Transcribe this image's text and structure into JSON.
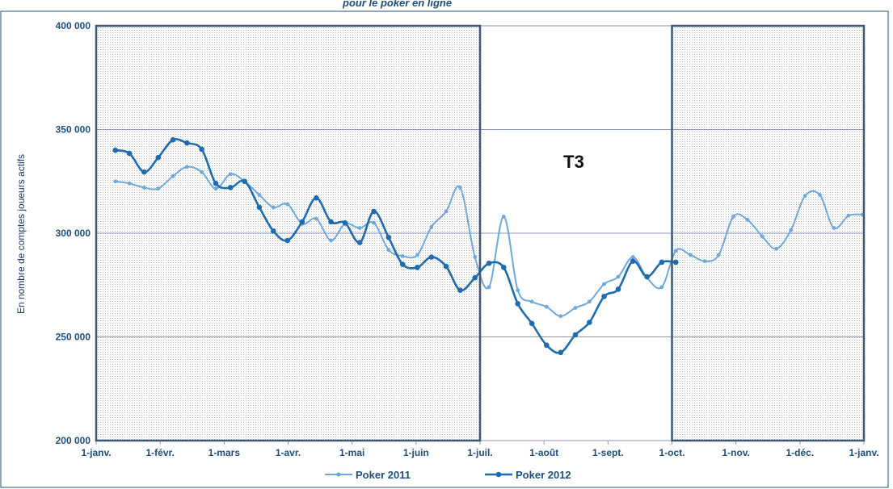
{
  "chart_data": {
    "type": "line",
    "title": "",
    "title_visible_fragment": "pour le poker en ligne",
    "ylabel": "En nombre de comptes joueurs actifs",
    "ylim": [
      200000,
      400000
    ],
    "yticks": [
      200000,
      250000,
      300000,
      350000,
      400000
    ],
    "ytick_labels": [
      "200 000",
      "250 000",
      "300 000",
      "350 000",
      "400 000"
    ],
    "xlim": [
      0,
      12
    ],
    "xtick_labels": [
      "1-janv.",
      "1-févr.",
      "1-mars",
      "1-avr.",
      "1-mai",
      "1-juin",
      "1-juil.",
      "1-août",
      "1-sept.",
      "1-oct.",
      "1-nov.",
      "1-déc.",
      "1-janv."
    ],
    "grid": true,
    "legend_position": "bottom",
    "annotation": "T3",
    "shaded_periods": [
      [
        0,
        6
      ],
      [
        9,
        12
      ]
    ],
    "series": [
      {
        "name": "Poker 2011",
        "color": "#6fa8dc",
        "x": [
          0.3,
          0.52,
          0.75,
          0.97,
          1.2,
          1.42,
          1.65,
          1.87,
          2.1,
          2.32,
          2.55,
          2.77,
          2.99,
          3.22,
          3.44,
          3.67,
          3.89,
          4.12,
          4.34,
          4.57,
          4.79,
          5.02,
          5.24,
          5.47,
          5.69,
          5.92,
          6.14,
          6.37,
          6.59,
          6.81,
          7.04,
          7.26,
          7.49,
          7.71,
          7.94,
          8.16,
          8.39,
          8.61,
          8.84,
          9.06,
          9.29,
          9.51,
          9.73,
          9.96,
          10.18,
          10.41,
          10.63,
          10.86,
          11.08,
          11.31,
          11.53,
          11.76,
          11.98
        ],
        "y": [
          325000,
          324000,
          322000,
          321500,
          327500,
          332000,
          329500,
          321500,
          328500,
          325000,
          318500,
          312500,
          314000,
          304500,
          307000,
          296500,
          304500,
          302500,
          305000,
          292000,
          289000,
          289500,
          303000,
          310500,
          322000,
          288500,
          274000,
          308000,
          272500,
          267000,
          264500,
          260000,
          264000,
          267000,
          275500,
          279000,
          288500,
          278500,
          274000,
          291500,
          289500,
          286500,
          289500,
          308000,
          306500,
          298500,
          292500,
          301500,
          318000,
          318500,
          302500,
          308500,
          309000
        ]
      },
      {
        "name": "Poker 2012",
        "color": "#1e6bb0",
        "x": [
          0.3,
          0.52,
          0.75,
          0.97,
          1.2,
          1.42,
          1.65,
          1.87,
          2.1,
          2.32,
          2.55,
          2.77,
          2.99,
          3.22,
          3.44,
          3.67,
          3.89,
          4.12,
          4.34,
          4.57,
          4.79,
          5.02,
          5.24,
          5.47,
          5.69,
          5.92,
          6.14,
          6.37,
          6.59,
          6.81,
          7.04,
          7.26,
          7.49,
          7.71,
          7.94,
          8.16,
          8.39,
          8.61,
          8.84,
          9.06
        ],
        "y": [
          340000,
          338500,
          329500,
          336500,
          345000,
          343500,
          340500,
          324000,
          322000,
          325000,
          312500,
          301000,
          296500,
          305500,
          317000,
          305500,
          305000,
          295500,
          310500,
          298000,
          285000,
          283500,
          288500,
          284000,
          272500,
          278500,
          285500,
          283500,
          266000,
          256500,
          246000,
          242500,
          251000,
          257000,
          269500,
          273000,
          286500,
          279000,
          286000,
          286000
        ]
      }
    ]
  }
}
